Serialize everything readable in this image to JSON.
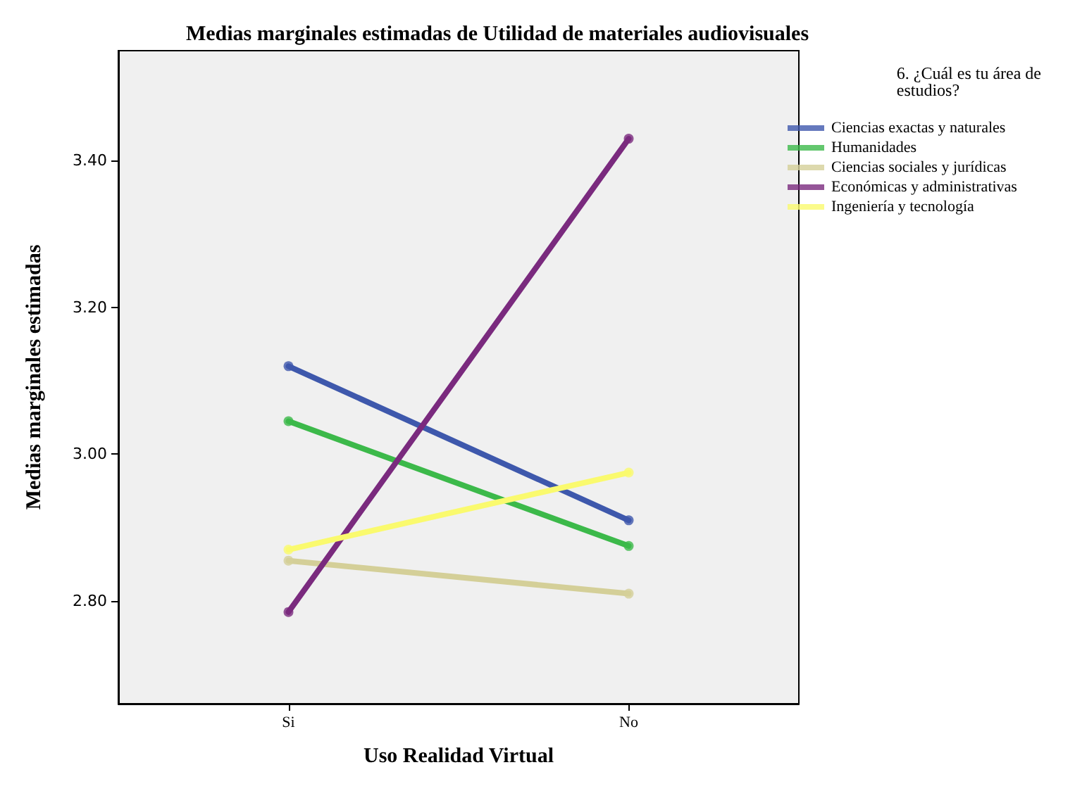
{
  "chart_data": {
    "type": "line",
    "title": "Medias marginales estimadas de Utilidad de materiales audiovisuales",
    "xlabel": "Uso Realidad Virtual",
    "ylabel": "Medias marginales estimadas",
    "legend_title": "6. ¿Cuál es tu área de estudios?",
    "categories": [
      "Si",
      "No"
    ],
    "series": [
      {
        "name": "Ciencias exactas y naturales",
        "color": "#3e58ac",
        "values": [
          3.12,
          2.91
        ]
      },
      {
        "name": "Humanidades",
        "color": "#3cb94a",
        "values": [
          3.045,
          2.875
        ]
      },
      {
        "name": "Ciencias sociales y jurídicas",
        "color": "#d4cf98",
        "values": [
          2.855,
          2.81
        ]
      },
      {
        "name": "Económicas y administrativas",
        "color": "#7a2a7e",
        "values": [
          2.785,
          3.43
        ]
      },
      {
        "name": "Ingeniería y tecnología",
        "color": "#fafa6e",
        "values": [
          2.87,
          2.975
        ]
      }
    ],
    "ylim": [
      2.66,
      3.55
    ],
    "yticks": [
      {
        "value": 2.8,
        "label": "2.80"
      },
      {
        "value": 3.0,
        "label": "3.00"
      },
      {
        "value": 3.2,
        "label": "3.20"
      },
      {
        "value": 3.4,
        "label": "3.40"
      }
    ],
    "grid": false,
    "legend": "right",
    "marker": "circle",
    "line_style": "solid"
  }
}
